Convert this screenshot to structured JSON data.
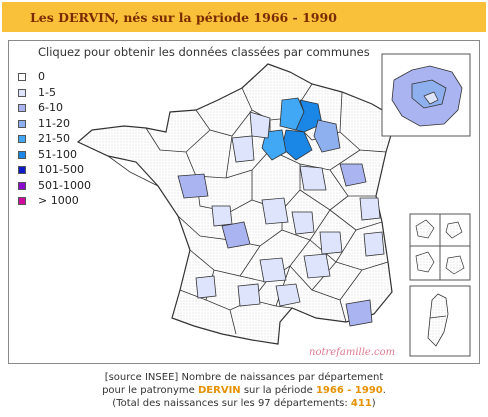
{
  "header": {
    "title": "Les DERVIN, nés sur la période 1966 - 1990"
  },
  "map": {
    "hint": "Cliquez pour obtenir les données classées par communes",
    "watermark": "notrefamille.com"
  },
  "legend": {
    "items": [
      {
        "label": "0",
        "color": "#ffffff"
      },
      {
        "label": "1-5",
        "color": "#dde4fb"
      },
      {
        "label": "6-10",
        "color": "#aab4f0"
      },
      {
        "label": "11-20",
        "color": "#8fb0ee"
      },
      {
        "label": "21-50",
        "color": "#40a8f5"
      },
      {
        "label": "51-100",
        "color": "#1a86e6"
      },
      {
        "label": "101-500",
        "color": "#0b1bc8"
      },
      {
        "label": "501-1000",
        "color": "#8a0ad0"
      },
      {
        "label": "> 1000",
        "color": "#d10a9e"
      }
    ]
  },
  "footer": {
    "line1": "[source INSEE] Nombre de naissances par département",
    "line2_prefix": "pour le patronyme ",
    "name": "DERVIN",
    "line2_mid": " sur la période ",
    "period": "1966 - 1990",
    "line2_suffix": ".",
    "line3_prefix": "(Total des naissances sur les 97 départements: ",
    "total": "411",
    "line3_suffix": ")"
  },
  "colors": {
    "title_bg": "#f9c13a",
    "title_text": "#7a2a00",
    "highlight": "#e69100",
    "watermark": "#e07a95",
    "zero": "#ffffff",
    "dotted": "#f2f2f2"
  }
}
